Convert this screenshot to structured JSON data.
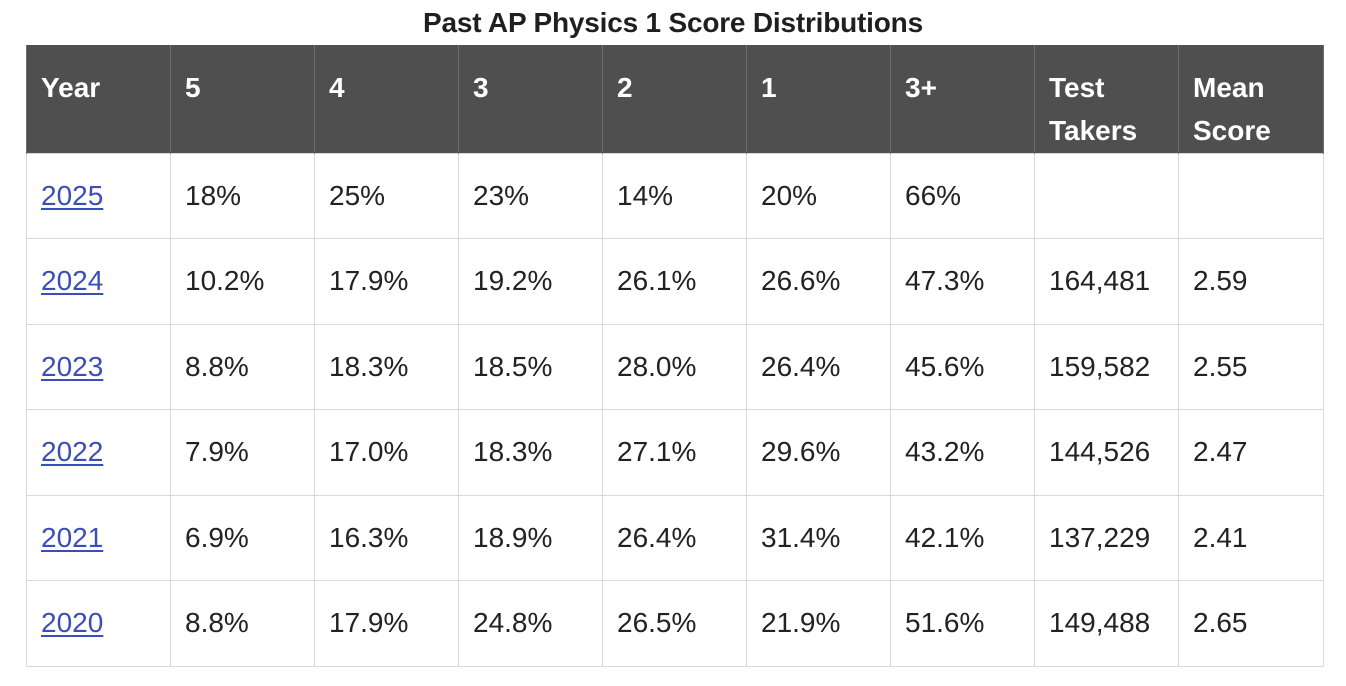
{
  "title": "Past AP Physics 1 Score Distributions",
  "table": {
    "headers": [
      "Year",
      "5",
      "4",
      "3",
      "2",
      "1",
      "3+",
      "Test Takers",
      "Mean Score"
    ],
    "rows": [
      {
        "year": "2025",
        "s5": "18%",
        "s4": "25%",
        "s3": "23%",
        "s2": "14%",
        "s1": "20%",
        "s3plus": "66%",
        "takers": "",
        "mean": ""
      },
      {
        "year": "2024",
        "s5": "10.2%",
        "s4": "17.9%",
        "s3": "19.2%",
        "s2": "26.1%",
        "s1": "26.6%",
        "s3plus": "47.3%",
        "takers": "164,481",
        "mean": "2.59"
      },
      {
        "year": "2023",
        "s5": "8.8%",
        "s4": "18.3%",
        "s3": "18.5%",
        "s2": "28.0%",
        "s1": "26.4%",
        "s3plus": "45.6%",
        "takers": "159,582",
        "mean": "2.55"
      },
      {
        "year": "2022",
        "s5": "7.9%",
        "s4": "17.0%",
        "s3": "18.3%",
        "s2": "27.1%",
        "s1": "29.6%",
        "s3plus": "43.2%",
        "takers": "144,526",
        "mean": "2.47"
      },
      {
        "year": "2021",
        "s5": "6.9%",
        "s4": "16.3%",
        "s3": "18.9%",
        "s2": "26.4%",
        "s1": "31.4%",
        "s3plus": "42.1%",
        "takers": "137,229",
        "mean": "2.41"
      },
      {
        "year": "2020",
        "s5": "8.8%",
        "s4": "17.9%",
        "s3": "24.8%",
        "s2": "26.5%",
        "s1": "21.9%",
        "s3plus": "51.6%",
        "takers": "149,488",
        "mean": "2.65"
      }
    ]
  },
  "colors": {
    "header_bg": "#4f4f4f",
    "header_text": "#ffffff",
    "link": "#3b4db8",
    "border": "#d9d9d9"
  }
}
